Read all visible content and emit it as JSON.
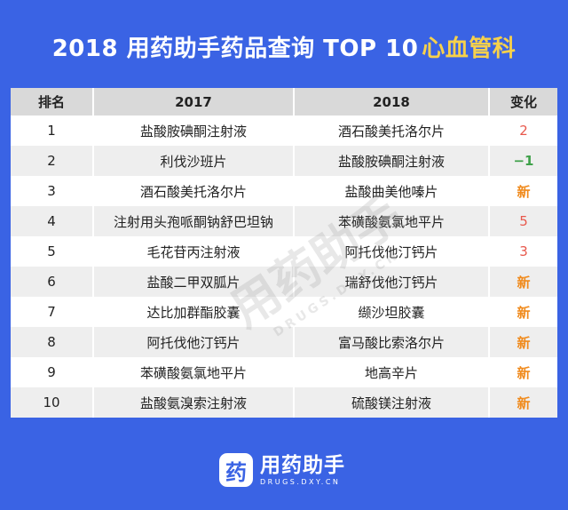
{
  "header": {
    "title_main": "2018 用药助手药品查询 TOP 10",
    "title_accent": "心血管科",
    "accent_color": "#f7d14b",
    "background_color": "#3a63e4"
  },
  "table": {
    "headers": {
      "rank": "排名",
      "y2017": "2017",
      "y2018": "2018",
      "change": "变化"
    },
    "rows": [
      {
        "rank": "1",
        "y2017": "盐酸胺碘酮注射液",
        "y2018": "酒石酸美托洛尔片",
        "change": "2",
        "change_type": "up"
      },
      {
        "rank": "2",
        "y2017": "利伐沙班片",
        "y2018": "盐酸胺碘酮注射液",
        "change": "−1",
        "change_type": "down"
      },
      {
        "rank": "3",
        "y2017": "酒石酸美托洛尔片",
        "y2018": "盐酸曲美他嗪片",
        "change": "新",
        "change_type": "new"
      },
      {
        "rank": "4",
        "y2017": "注射用头孢哌酮钠舒巴坦钠",
        "y2018": "苯磺酸氨氯地平片",
        "change": "5",
        "change_type": "up"
      },
      {
        "rank": "5",
        "y2017": "毛花苷丙注射液",
        "y2018": "阿托伐他汀钙片",
        "change": "3",
        "change_type": "up"
      },
      {
        "rank": "6",
        "y2017": "盐酸二甲双胍片",
        "y2018": "瑞舒伐他汀钙片",
        "change": "新",
        "change_type": "new"
      },
      {
        "rank": "7",
        "y2017": "达比加群酯胶囊",
        "y2018": "缬沙坦胶囊",
        "change": "新",
        "change_type": "new"
      },
      {
        "rank": "8",
        "y2017": "阿托伐他汀钙片",
        "y2018": "富马酸比索洛尔片",
        "change": "新",
        "change_type": "new"
      },
      {
        "rank": "9",
        "y2017": "苯磺酸氨氯地平片",
        "y2018": "地高辛片",
        "change": "新",
        "change_type": "new"
      },
      {
        "rank": "10",
        "y2017": "盐酸氨溴索注射液",
        "y2018": "硫酸镁注射液",
        "change": "新",
        "change_type": "new"
      }
    ],
    "change_colors": {
      "up": "#e8584c",
      "down": "#3fa14a",
      "new": "#f08a1c"
    }
  },
  "watermark": {
    "text": "用药助手",
    "subtext": "DRUGS.DXY.CN"
  },
  "footer": {
    "logo_icon_glyph": "药",
    "logo_name": "用药助手",
    "logo_url": "DRUGS.DXY.CN"
  }
}
